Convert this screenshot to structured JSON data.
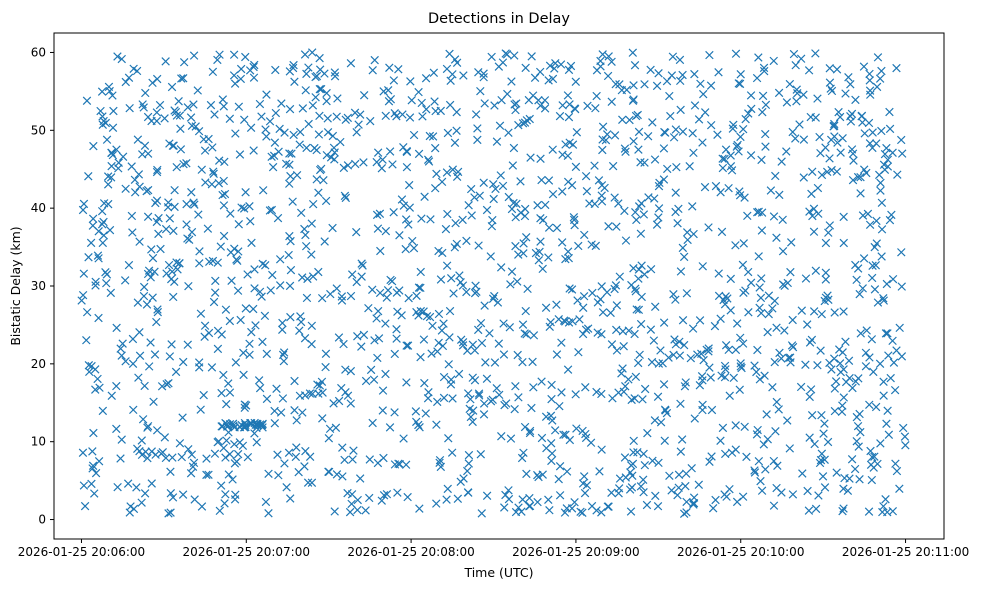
{
  "chart_data": {
    "type": "scatter",
    "title": "Detections in Delay",
    "xlabel": "Time (UTC)",
    "ylabel": "Bistatic Delay (km)",
    "marker": "x",
    "marker_color": "#1f77b4",
    "grid": false,
    "legend": "none",
    "xlim": [
      "2026-01-25 20:05:50",
      "2026-01-25 20:11:14"
    ],
    "ylim": [
      -2.5,
      62.5
    ],
    "x_ticks": [
      "2026-01-25 20:06:00",
      "2026-01-25 20:07:00",
      "2026-01-25 20:08:00",
      "2026-01-25 20:09:00",
      "2026-01-25 20:10:00",
      "2026-01-25 20:11:00"
    ],
    "y_ticks": [
      0,
      10,
      20,
      30,
      40,
      50,
      60
    ],
    "series": [
      {
        "time_start": "2026-01-25 20:06:00",
        "time_end": "2026-01-25 20:11:00",
        "x": [
          "2026-01-25 20:06:02",
          "2026-01-25 20:06:06",
          "2026-01-25 20:06:11",
          "2026-01-25 20:06:15",
          "2026-01-25 20:06:19",
          "2026-01-25 20:06:24",
          "2026-01-25 20:06:28",
          "2026-01-25 20:06:32",
          "2026-01-25 20:06:37",
          "2026-01-25 20:06:41",
          "2026-01-25 20:06:45",
          "2026-01-25 20:06:50",
          "2026-01-25 20:06:54",
          "2026-01-25 20:06:58",
          "2026-01-25 20:07:03",
          "2026-01-25 20:07:07",
          "2026-01-25 20:07:11",
          "2026-01-25 20:07:16",
          "2026-01-25 20:07:20",
          "2026-01-25 20:07:24",
          "2026-01-25 20:07:29",
          "2026-01-25 20:07:33",
          "2026-01-25 20:07:37",
          "2026-01-25 20:07:42",
          "2026-01-25 20:07:46",
          "2026-01-25 20:07:50",
          "2026-01-25 20:07:55",
          "2026-01-25 20:07:59",
          "2026-01-25 20:08:03",
          "2026-01-25 20:08:08",
          "2026-01-25 20:08:12",
          "2026-01-25 20:08:16",
          "2026-01-25 20:08:21",
          "2026-01-25 20:08:25",
          "2026-01-25 20:08:29",
          "2026-01-25 20:08:34",
          "2026-01-25 20:08:38",
          "2026-01-25 20:08:42",
          "2026-01-25 20:08:47",
          "2026-01-25 20:08:51",
          "2026-01-25 20:08:55",
          "2026-01-25 20:09:00",
          "2026-01-25 20:09:04",
          "2026-01-25 20:09:08",
          "2026-01-25 20:09:13",
          "2026-01-25 20:09:17",
          "2026-01-25 20:09:21",
          "2026-01-25 20:09:26",
          "2026-01-25 20:09:30",
          "2026-01-25 20:09:34",
          "2026-01-25 20:09:39",
          "2026-01-25 20:09:43",
          "2026-01-25 20:09:47",
          "2026-01-25 20:09:52",
          "2026-01-25 20:09:56",
          "2026-01-25 20:10:00",
          "2026-01-25 20:10:05",
          "2026-01-25 20:10:09",
          "2026-01-25 20:10:13",
          "2026-01-25 20:10:18",
          "2026-01-25 20:10:22",
          "2026-01-25 20:10:26",
          "2026-01-25 20:10:31",
          "2026-01-25 20:10:35",
          "2026-01-25 20:10:39",
          "2026-01-25 20:10:44",
          "2026-01-25 20:10:48",
          "2026-01-25 20:10:52",
          "2026-01-25 20:10:57"
        ],
        "y": [
          53.8,
          33.9,
          47.1,
          22.6,
          57.9,
          11.8,
          36.7,
          48.3,
          3.2,
          59.6,
          24.9,
          43.2,
          8.4,
          56.6,
          29.7,
          50.1,
          16.8,
          2.7,
          39.4,
          60.0,
          21.3,
          5.8,
          45.5,
          31.2,
          12.4,
          55.0,
          26.7,
          37.9,
          1.4,
          49.2,
          18.3,
          59.1,
          7.2,
          41.6,
          33.8,
          14.7,
          52.6,
          23.8,
          57.5,
          9.8,
          35.6,
          45.3,
          4.4,
          27.9,
          58.8,
          19.4,
          48.6,
          11.1,
          38.8,
          54.4,
          25.6,
          2.1,
          42.7,
          31.6,
          15.9,
          57.2,
          6.3,
          47.9,
          36.2,
          20.8,
          59.2,
          13.4,
          28.5,
          44.7,
          3.7,
          51.8,
          32.6,
          17.7,
          44.3
        ]
      }
    ]
  }
}
